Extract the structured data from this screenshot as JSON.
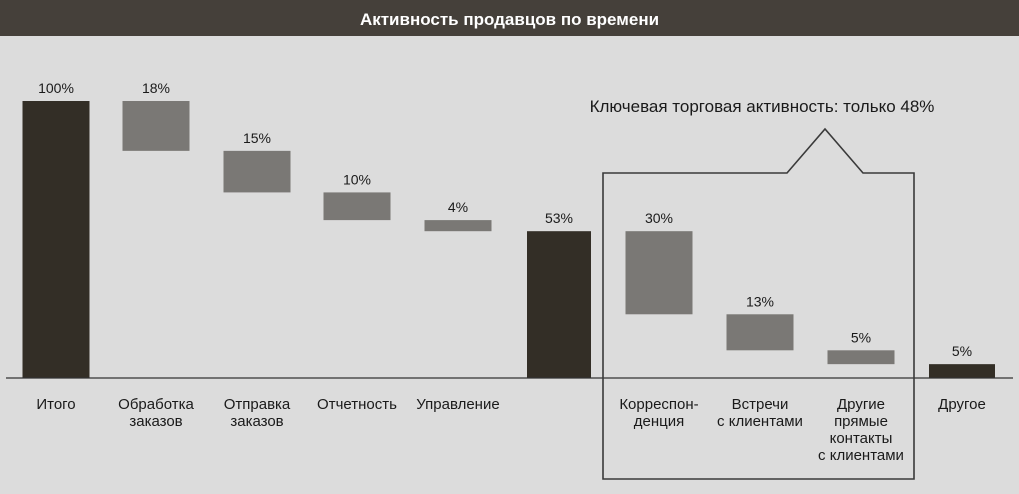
{
  "title": "Активность продавцов по времени",
  "callout": "Ключевая торговая активность: только 48%",
  "colors": {
    "header_bg": "#45403a",
    "background": "#dcdcdc",
    "total_bar": "#332e26",
    "step_bar": "#7a7875",
    "axis": "#333333",
    "callout_border": "#3a3a3a"
  },
  "chart_data": {
    "type": "bar",
    "subtype": "waterfall",
    "title": "Активность продавцов по времени",
    "ylim": [
      0,
      100
    ],
    "grid": false,
    "legend": "none",
    "bars": [
      {
        "category": [
          "Итого"
        ],
        "label": "100%",
        "start": 0,
        "end": 100,
        "kind": "total"
      },
      {
        "category": [
          "Обработка",
          "заказов"
        ],
        "label": "18%",
        "start": 82,
        "end": 100,
        "kind": "step"
      },
      {
        "category": [
          "Отправка",
          "заказов"
        ],
        "label": "15%",
        "start": 67,
        "end": 82,
        "kind": "step"
      },
      {
        "category": [
          "Отчетность"
        ],
        "label": "10%",
        "start": 57,
        "end": 67,
        "kind": "step"
      },
      {
        "category": [
          "Управление"
        ],
        "label": "4%",
        "start": 53,
        "end": 57,
        "kind": "step"
      },
      {
        "category": [],
        "label": "53%",
        "start": 0,
        "end": 53,
        "kind": "total"
      },
      {
        "category": [
          "Корреспон-",
          "денция"
        ],
        "label": "30%",
        "start": 23,
        "end": 53,
        "kind": "step"
      },
      {
        "category": [
          "Встречи",
          "с клиентами"
        ],
        "label": "13%",
        "start": 10,
        "end": 23,
        "kind": "step"
      },
      {
        "category": [
          "Другие",
          "прямые",
          "контакты",
          "с клиентами"
        ],
        "label": "5%",
        "start": 5,
        "end": 10,
        "kind": "step"
      },
      {
        "category": [
          "Другое"
        ],
        "label": "5%",
        "start": 0,
        "end": 5,
        "kind": "total"
      }
    ]
  }
}
